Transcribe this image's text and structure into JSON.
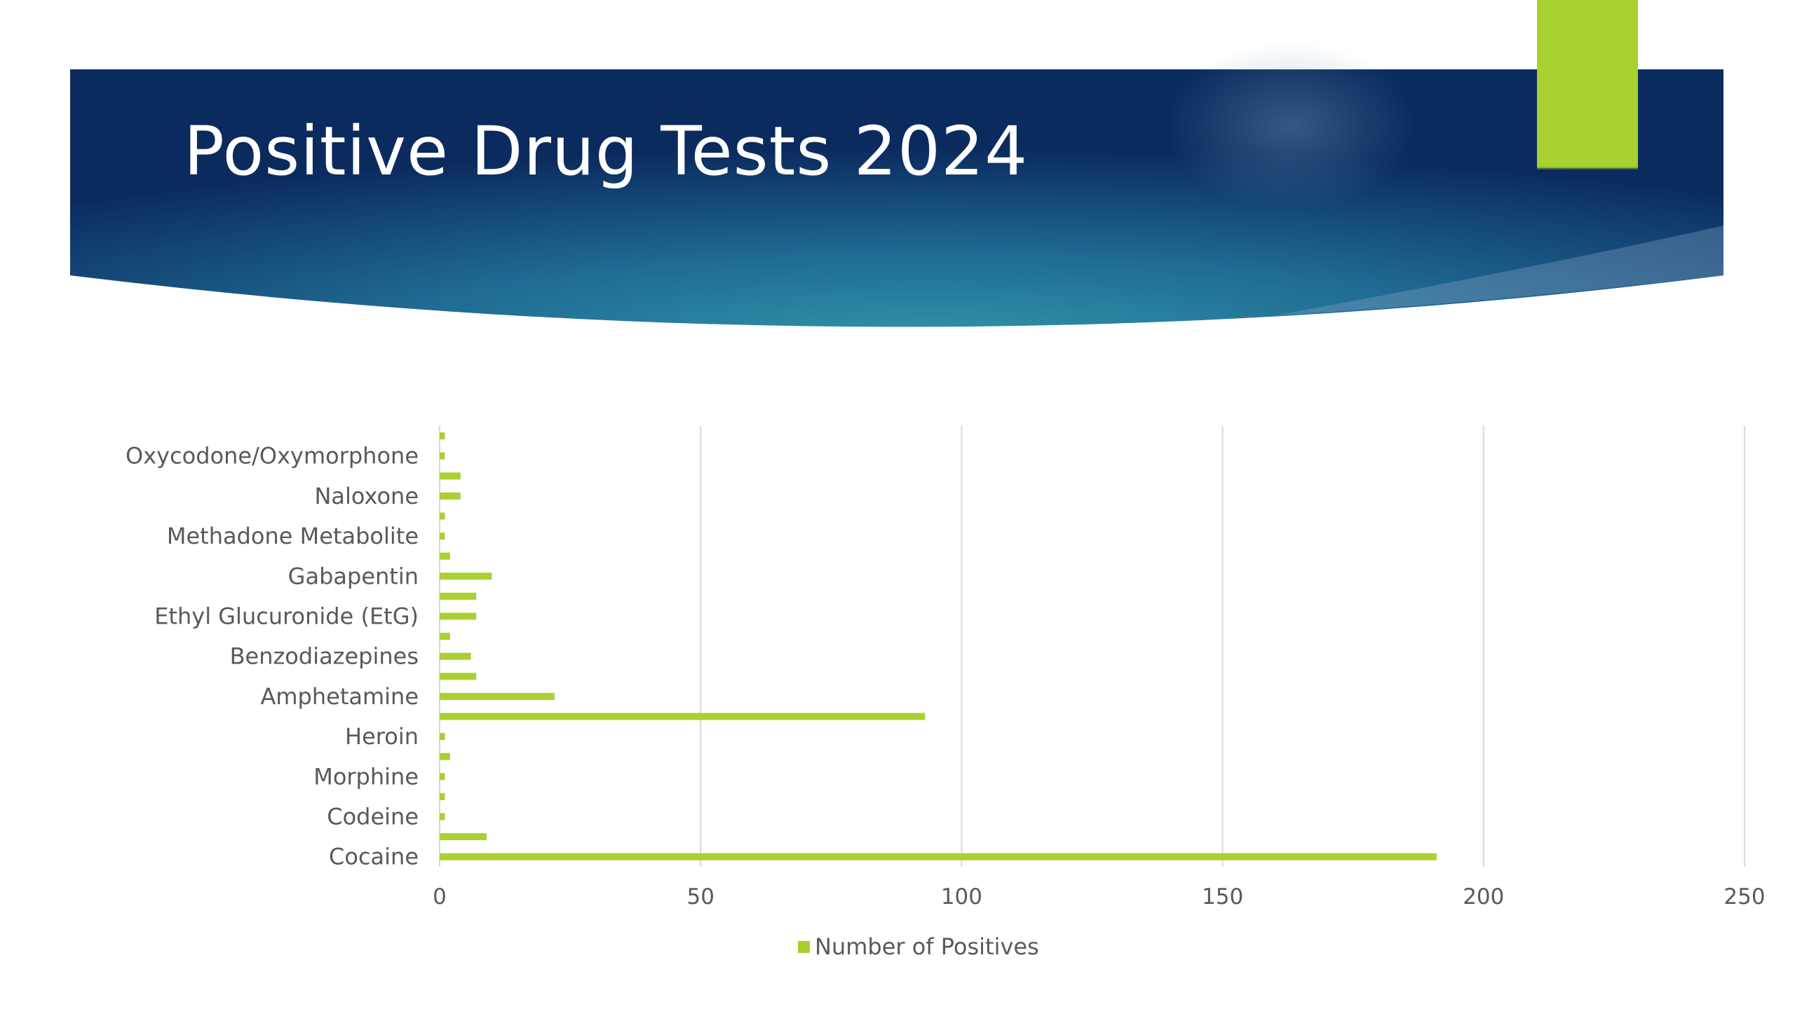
{
  "slide": {
    "title": "Positive Drug Tests 2024"
  },
  "colors": {
    "banner_dark": "#0b2a5a",
    "banner_mid": "#2e8aa3",
    "accent": "#a8d02f",
    "grid": "#d9d9d9",
    "text": "#595959"
  },
  "chart_data": {
    "type": "bar",
    "orientation": "horizontal",
    "categories": [
      "Cocaine",
      "",
      "Codeine",
      "",
      "Morphine",
      "",
      "Heroin",
      "",
      "Amphetamine",
      "",
      "Benzodiazepines",
      "",
      "Ethyl Glucuronide (EtG)",
      "",
      "Gabapentin",
      "",
      "Methadone Metabolite",
      "",
      "Naloxone",
      "",
      "Oxycodone/Oxymorphone",
      ""
    ],
    "series": [
      {
        "name": "Number of Positives",
        "values": [
          191,
          9,
          1,
          1,
          1,
          2,
          1,
          93,
          22,
          7,
          6,
          2,
          7,
          7,
          10,
          2,
          1,
          1,
          4,
          4,
          1,
          1
        ]
      }
    ],
    "xlabel": "",
    "ylabel": "",
    "xlim": [
      0,
      250
    ],
    "xticks": [
      0,
      50,
      100,
      150,
      200,
      250
    ],
    "grid": true,
    "legend": "bottom"
  }
}
